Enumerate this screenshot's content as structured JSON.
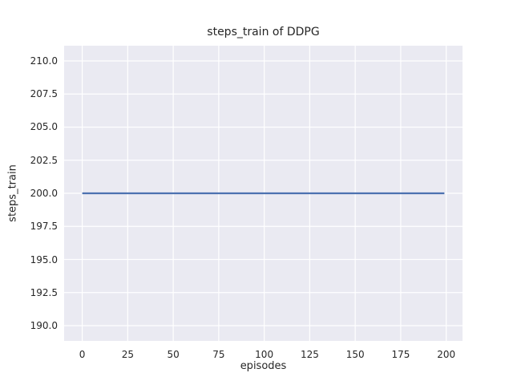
{
  "figure": {
    "background": "#ffffff",
    "text_color": "#262626"
  },
  "chart_data": {
    "type": "line",
    "title": "steps_train of DDPG",
    "xlabel": "episodes",
    "ylabel": "steps_train",
    "x_ticks": [
      0,
      25,
      50,
      75,
      100,
      125,
      150,
      175,
      200
    ],
    "y_ticks": [
      190.0,
      192.5,
      195.0,
      197.5,
      200.0,
      202.5,
      205.0,
      207.5,
      210.0
    ],
    "xlim": [
      -9.95,
      208.95
    ],
    "ylim": [
      188.85,
      211.15
    ],
    "grid": true,
    "legend": "none",
    "plot_background": "#eaeaf2",
    "grid_color": "#ffffff",
    "series": [
      {
        "name": "steps_train",
        "color": "#4c72b0",
        "x": [
          0,
          199
        ],
        "y": [
          200,
          200
        ]
      }
    ]
  }
}
